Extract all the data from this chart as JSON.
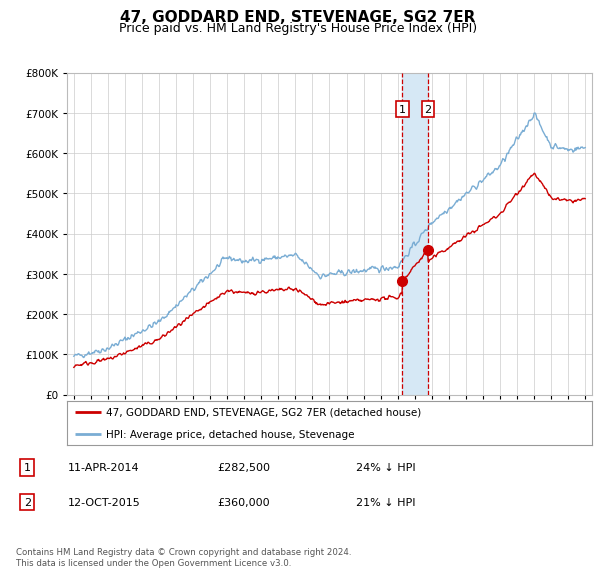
{
  "title": "47, GODDARD END, STEVENAGE, SG2 7ER",
  "subtitle": "Price paid vs. HM Land Registry's House Price Index (HPI)",
  "title_fontsize": 11,
  "subtitle_fontsize": 9,
  "sale1_date_num": 2014.27,
  "sale1_price": 282500,
  "sale1_label": "1",
  "sale2_date_num": 2015.78,
  "sale2_price": 360000,
  "sale2_label": "2",
  "legend_line1": "47, GODDARD END, STEVENAGE, SG2 7ER (detached house)",
  "legend_line2": "HPI: Average price, detached house, Stevenage",
  "footnote": "Contains HM Land Registry data © Crown copyright and database right 2024.\nThis data is licensed under the Open Government Licence v3.0.",
  "ylim": [
    0,
    800000
  ],
  "xlim_left": 1994.6,
  "xlim_right": 2025.4,
  "red_color": "#cc0000",
  "blue_color": "#7aadd4",
  "shade_color": "#d6e8f5",
  "background_color": "#ffffff",
  "grid_color": "#cccccc"
}
